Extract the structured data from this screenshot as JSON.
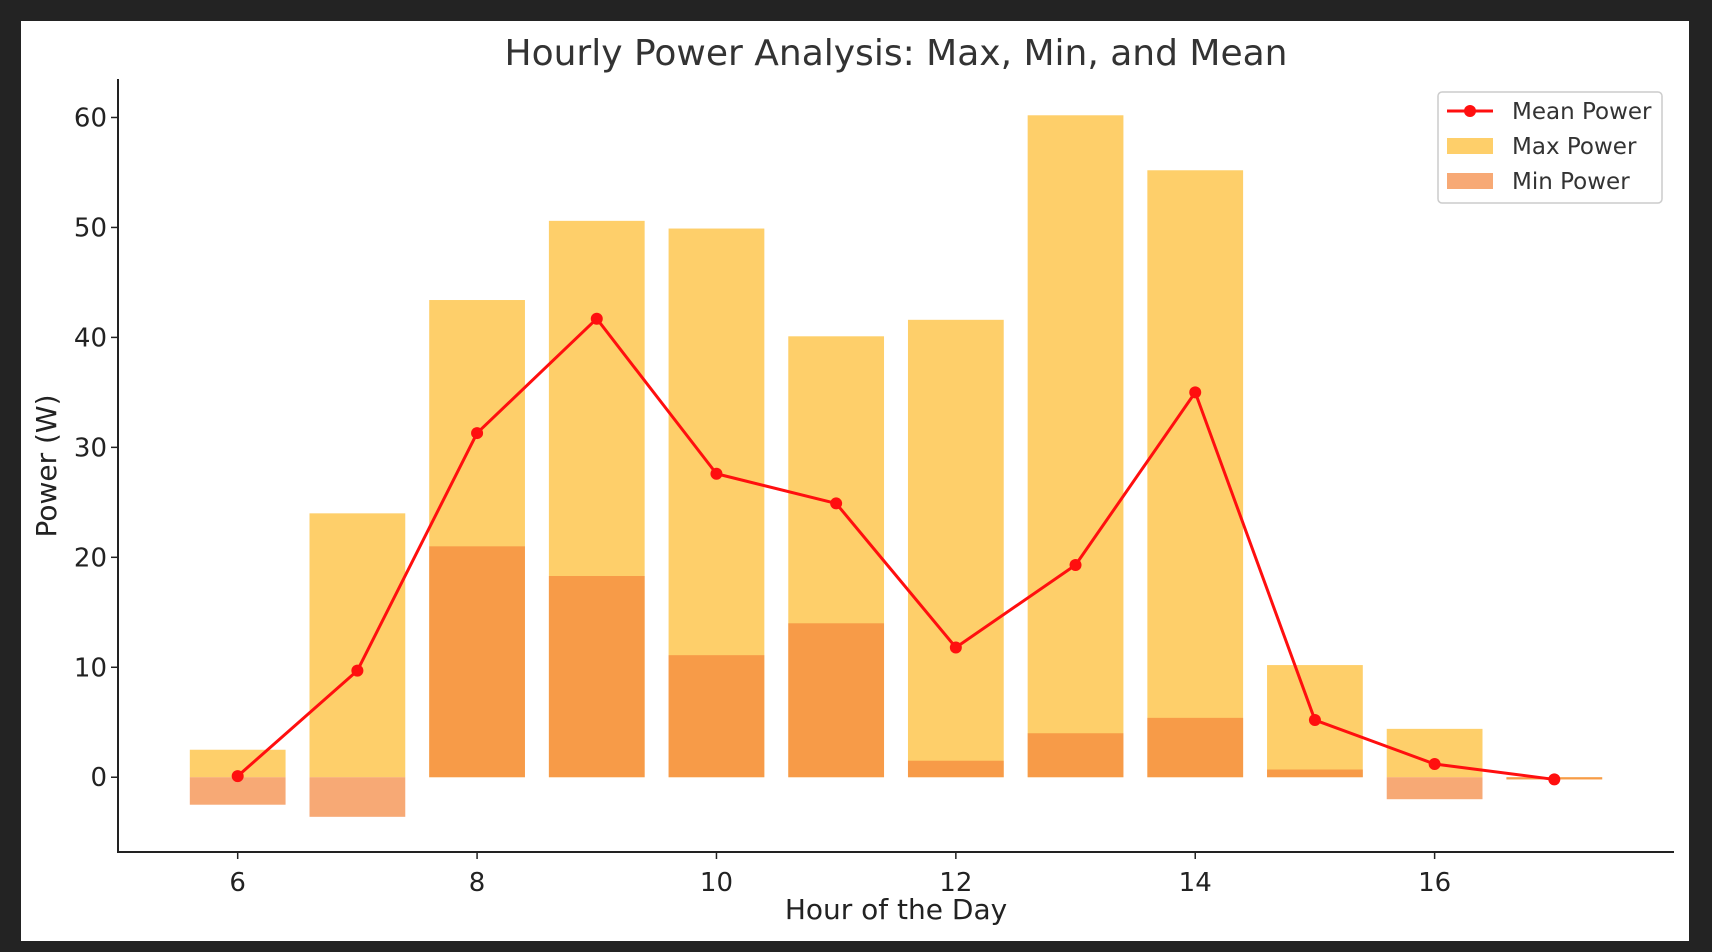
{
  "chart_data": {
    "type": "bar",
    "title": "Hourly Power Analysis: Max, Min, and Mean",
    "xlabel": "Hour of the Day",
    "ylabel": "Power (W)",
    "xlim": [
      5,
      18
    ],
    "ylim": [
      -6.8,
      63.5
    ],
    "xticks": [
      6,
      8,
      10,
      12,
      14,
      16
    ],
    "yticks": [
      0,
      10,
      20,
      30,
      40,
      50,
      60
    ],
    "grid": false,
    "legend_position": "top-right",
    "x": [
      6,
      7,
      8,
      9,
      10,
      11,
      12,
      13,
      14,
      15,
      16,
      17
    ],
    "series": [
      {
        "name": "Max Power",
        "type": "bar",
        "color": "#fecf6a",
        "values": [
          2.5,
          24.0,
          43.4,
          50.6,
          49.9,
          40.1,
          41.6,
          60.2,
          55.2,
          10.2,
          4.4,
          -0.2
        ]
      },
      {
        "name": "Min Power",
        "type": "bar",
        "color": "#f4843a",
        "values": [
          -2.5,
          -3.6,
          21.0,
          18.3,
          11.1,
          14.0,
          1.5,
          4.0,
          5.4,
          0.7,
          -2.0,
          -0.2
        ]
      },
      {
        "name": "Mean Power",
        "type": "line",
        "color": "#ff0f0f",
        "values": [
          0.1,
          9.7,
          31.3,
          41.7,
          27.6,
          24.9,
          11.8,
          19.3,
          35.0,
          5.2,
          1.2,
          -0.2
        ]
      }
    ]
  }
}
